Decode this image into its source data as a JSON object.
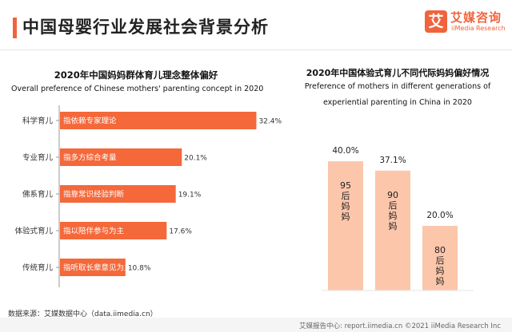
{
  "header": {
    "title": "中国母婴行业发展社会背景分析",
    "logo_mark": "艾",
    "logo_cn": "艾媒咨询",
    "logo_en": "iiMedia Research"
  },
  "left_chart": {
    "title_cn": "2020年中国妈妈群体育儿理念整体偏好",
    "title_en": "Overall preference of Chinese mothers' parenting concept in 2020"
  },
  "right_chart": {
    "title_cn": "2020年中国体验式育儿不同代际妈妈偏好情况",
    "title_en_line1": "Preference of mothers in different generations of",
    "title_en_line2": "experiential parenting in China in 2020"
  },
  "source": "数据来源：艾媒数据中心（data.iimedia.cn）",
  "footer": "艾媒报告中心: report.iimedia.cn   ©2021  iiMedia Research  Inc",
  "colors": {
    "accent": "#f1633c",
    "bar_left": "#f4683a",
    "bar_right": "#fcc6ab",
    "text": "#222222"
  },
  "chart_data": [
    {
      "type": "bar",
      "orientation": "horizontal",
      "title": "2020年中国妈妈群体育儿理念整体偏好",
      "subtitle": "Overall preference of Chinese mothers' parenting concept in 2020",
      "categories": [
        "科学育儿",
        "专业育儿",
        "佛系育儿",
        "体验式育儿",
        "传统育儿"
      ],
      "bar_labels": [
        "指依赖专家理论",
        "指多方综合考量",
        "指靠常识经验判断",
        "指以陪伴参与为主",
        "指听取长辈意见为主"
      ],
      "values": [
        32.4,
        20.1,
        19.1,
        17.6,
        10.8
      ],
      "value_labels": [
        "32.4%",
        "20.1%",
        "19.1%",
        "17.6%",
        "10.8%"
      ],
      "unit": "%",
      "xlim": [
        0,
        33
      ],
      "grid": false,
      "legend": "none"
    },
    {
      "type": "bar",
      "orientation": "vertical",
      "title": "2020年中国体验式育儿不同代际妈妈偏好情况",
      "subtitle": "Preference of mothers in different generations of experiential parenting in China in 2020",
      "categories": [
        "95后妈妈",
        "90后妈妈",
        "80后妈妈"
      ],
      "values": [
        40.0,
        37.1,
        20.0
      ],
      "value_labels": [
        "40.0%",
        "37.1%",
        "20.0%"
      ],
      "unit": "%",
      "ylim": [
        0,
        42
      ],
      "grid": false,
      "legend": "none"
    }
  ]
}
